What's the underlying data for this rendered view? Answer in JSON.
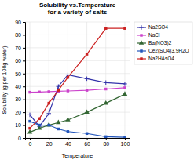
{
  "chart_data": {
    "type": "line",
    "title": "Solubility vs.Temperature\nfor a variety of salts",
    "x_label": "Temperature",
    "y_label": "Solubility (g per 100g water)",
    "x": [
      0,
      10,
      20,
      30,
      40,
      60,
      80,
      100
    ],
    "series": [
      {
        "name": "Na2SO4",
        "color": "#3333aa",
        "marker": "plus",
        "values": [
          18,
          9,
          19,
          40,
          49,
          46,
          43,
          42
        ]
      },
      {
        "name": "NaCl",
        "color": "#cc44cc",
        "marker": "square",
        "values": [
          35.5,
          35.7,
          35.9,
          36.2,
          36.5,
          37.0,
          38.0,
          39.0
        ]
      },
      {
        "name": "Ba(NO3)2",
        "color": "#336633",
        "marker": "triangle",
        "values": [
          4.5,
          7.5,
          10,
          12,
          14,
          20,
          27,
          34
        ]
      },
      {
        "name": "Ce2(SO4)3.9H2O",
        "color": "#2255bb",
        "marker": "square",
        "values": [
          13,
          10,
          10,
          7,
          5,
          3.5,
          1,
          0.5
        ]
      },
      {
        "name": "Na2HAsO4",
        "color": "#cc2222",
        "marker": "square",
        "values": [
          7.5,
          15,
          27,
          37,
          47,
          65,
          85,
          85
        ]
      }
    ],
    "xlim": [
      -5,
      105
    ],
    "ylim": [
      0,
      90
    ],
    "xticks": [
      0,
      20,
      40,
      60,
      80,
      100
    ],
    "yticks": [
      0,
      10,
      20,
      30,
      40,
      50,
      60,
      70,
      80,
      90
    ],
    "grid": true,
    "legend": "right"
  }
}
